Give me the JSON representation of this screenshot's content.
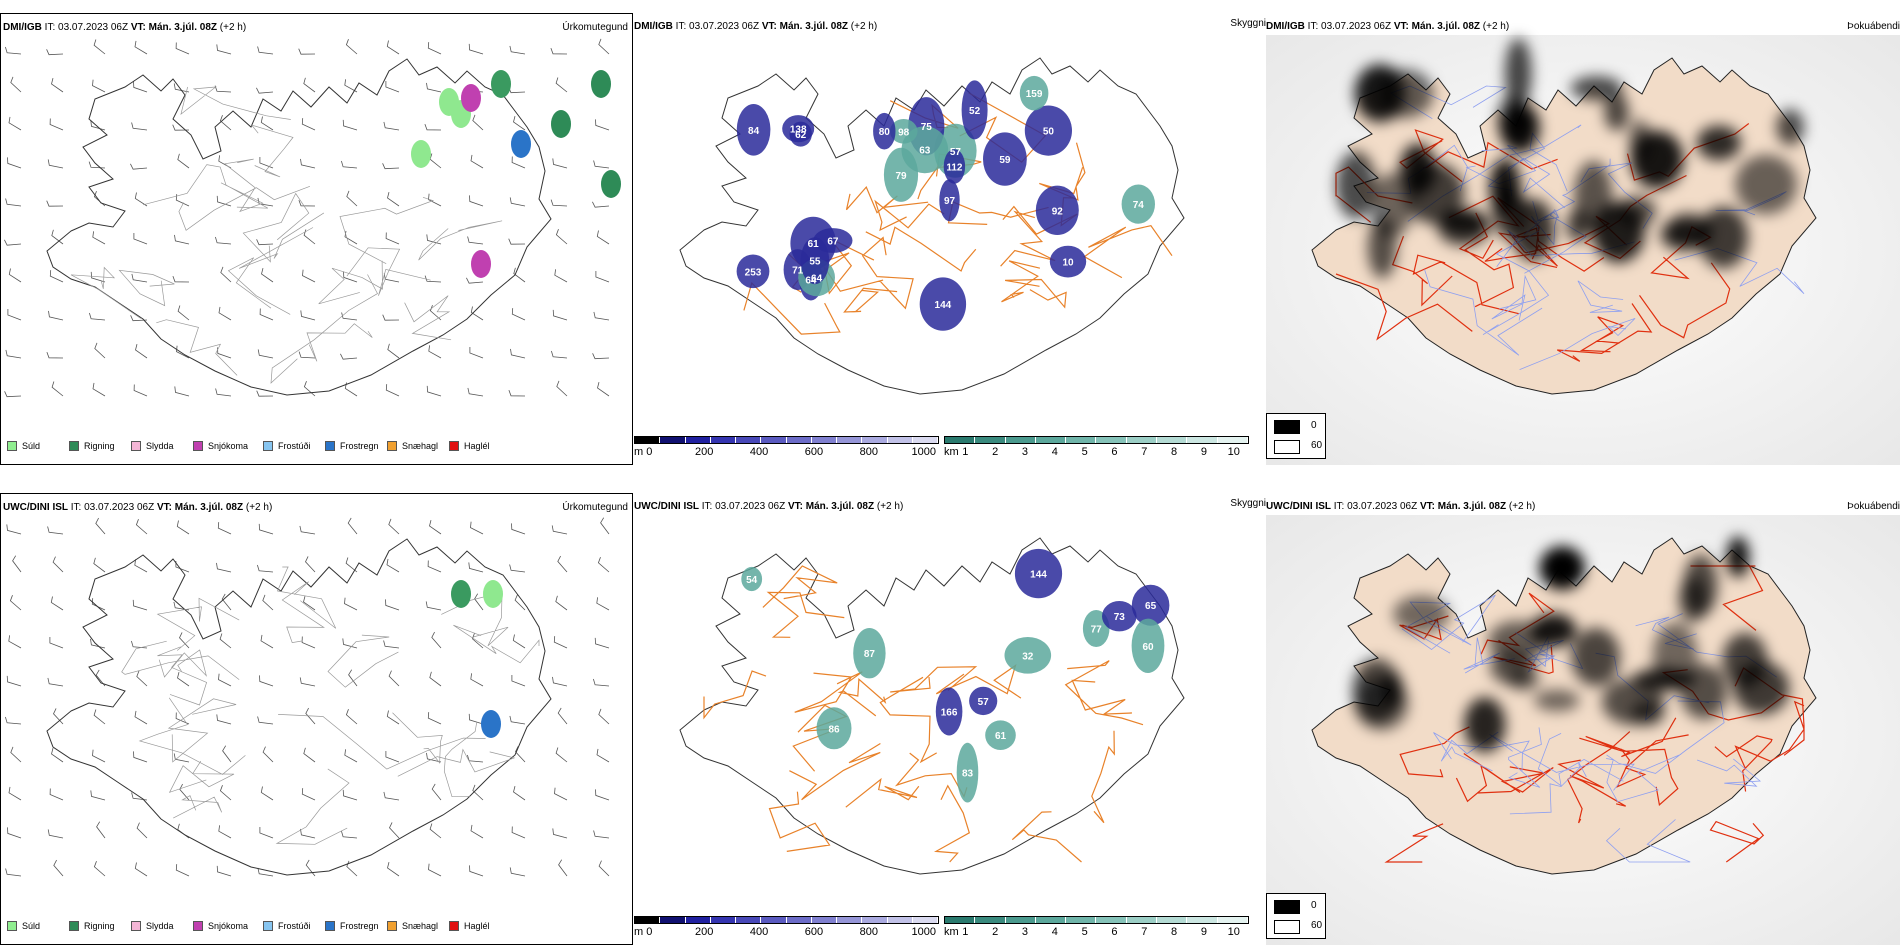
{
  "rows": [
    {
      "model_label": "DMI/IGB",
      "precip_title": {
        "it_label": "IT:",
        "it_value": "03.07.2023 06Z",
        "vt_label": "VT:",
        "vt_value": "Mán. 3.júl. 08Z",
        "lead": "(+2 h)"
      },
      "precip_type_title": "Úrkomutegund",
      "visibility_title": "Skyggni",
      "fog_title": "Þokuábendi",
      "height_labels": [
        "57",
        "71",
        "75",
        "138",
        "10",
        "52",
        "50",
        "92",
        "84",
        "79",
        "62",
        "74",
        "64",
        "253",
        "98",
        "61",
        "97",
        "63",
        "144",
        "59",
        "64",
        "55",
        "112",
        "159",
        "80",
        "67"
      ]
    },
    {
      "model_label": "UWC/DINI ISL",
      "precip_title": {
        "it_label": "IT:",
        "it_value": "03.07.2023 06Z",
        "vt_label": "VT:",
        "vt_value": "Mán. 3.júl. 08Z",
        "lead": "(+2 h)"
      },
      "precip_type_title": "Úrkomutegund",
      "visibility_title": "Skyggni",
      "fog_title": "Þokuábendi",
      "height_labels": [
        "54",
        "83",
        "61",
        "144",
        "86",
        "65",
        "87",
        "77",
        "60",
        "73",
        "166",
        "32",
        "57"
      ]
    }
  ],
  "precip_legend": [
    {
      "label": "Súld",
      "color": "#90ee90"
    },
    {
      "label": "Rigning",
      "color": "#2e8b57"
    },
    {
      "label": "Slydda",
      "color": "#f4b6d6"
    },
    {
      "label": "Snjókoma",
      "color": "#c040b0"
    },
    {
      "label": "Frostúði",
      "color": "#87c5f0"
    },
    {
      "label": "Frostregn",
      "color": "#2a74c8"
    },
    {
      "label": "Snæhagl",
      "color": "#f0a030"
    },
    {
      "label": "Haglél",
      "color": "#e01010"
    }
  ],
  "height_bar": {
    "unit": "m",
    "ticks": [
      "0",
      "200",
      "400",
      "600",
      "800",
      "1000"
    ],
    "colors": [
      "#000000",
      "#101070",
      "#2020a0",
      "#3434b0",
      "#4848b8",
      "#5a5ac0",
      "#6c6cc8",
      "#8080d0",
      "#9696d8",
      "#aaaae0",
      "#c2c2e8",
      "#dadaf0"
    ]
  },
  "vis_bar": {
    "unit": "km",
    "ticks": [
      "1",
      "2",
      "3",
      "4",
      "5",
      "6",
      "7",
      "8",
      "9",
      "10"
    ],
    "colors": [
      "#2a7a6e",
      "#3a8a7e",
      "#4b9a8e",
      "#5ca89c",
      "#70b5aa",
      "#86c3b9",
      "#9ccfc6",
      "#b4dbd4",
      "#cce7e2",
      "#e4f3f0"
    ]
  },
  "fog_legend": [
    {
      "value": "0",
      "color": "#000000"
    },
    {
      "value": "60",
      "color": "#ffffff"
    }
  ]
}
